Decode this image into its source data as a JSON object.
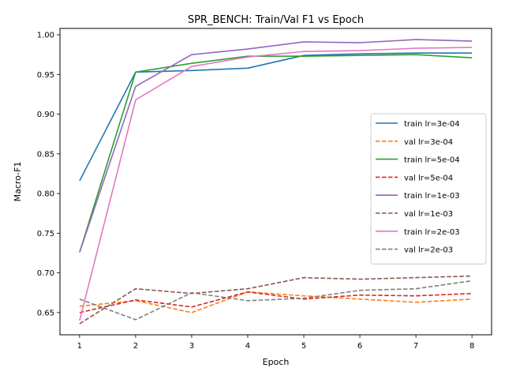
{
  "chart_data": {
    "type": "line",
    "title": "SPR_BENCH: Train/Val F1 vs Epoch",
    "xlabel": "Epoch",
    "ylabel": "Macro-F1",
    "x": [
      1,
      2,
      3,
      4,
      5,
      6,
      7,
      8
    ],
    "xlim": [
      0.65,
      8.35
    ],
    "ylim": [
      0.622,
      1.008
    ],
    "yticks": [
      "0.65",
      "0.70",
      "0.75",
      "0.80",
      "0.85",
      "0.90",
      "0.95",
      "1.00"
    ],
    "xticks": [
      "1",
      "2",
      "3",
      "4",
      "5",
      "6",
      "7",
      "8"
    ],
    "grid": false,
    "legend_position": "center-right",
    "series": [
      {
        "name": "train lr=3e-04",
        "color": "#1f77b4",
        "dash": "solid",
        "values": [
          0.816,
          0.953,
          0.955,
          0.958,
          0.974,
          0.976,
          0.977,
          0.977
        ]
      },
      {
        "name": "val lr=3e-04",
        "color": "#ff7f0e",
        "dash": "dashed",
        "values": [
          0.658,
          0.665,
          0.65,
          0.676,
          0.671,
          0.667,
          0.663,
          0.667
        ]
      },
      {
        "name": "train lr=5e-04",
        "color": "#2ca02c",
        "dash": "solid",
        "values": [
          0.726,
          0.953,
          0.964,
          0.973,
          0.973,
          0.974,
          0.975,
          0.971
        ]
      },
      {
        "name": "val lr=5e-04",
        "color": "#d62728",
        "dash": "dashed",
        "values": [
          0.65,
          0.666,
          0.657,
          0.676,
          0.667,
          0.672,
          0.671,
          0.674
        ]
      },
      {
        "name": "train lr=1e-03",
        "color": "#9467bd",
        "dash": "solid",
        "values": [
          0.726,
          0.935,
          0.975,
          0.982,
          0.991,
          0.99,
          0.994,
          0.992
        ]
      },
      {
        "name": "val lr=1e-03",
        "color": "#8c564b",
        "dash": "dashed",
        "values": [
          0.636,
          0.68,
          0.674,
          0.68,
          0.694,
          0.692,
          0.694,
          0.696
        ]
      },
      {
        "name": "train lr=2e-03",
        "color": "#e377c2",
        "dash": "solid",
        "values": [
          0.64,
          0.918,
          0.96,
          0.972,
          0.979,
          0.98,
          0.983,
          0.984
        ]
      },
      {
        "name": "val lr=2e-03",
        "color": "#7f7f7f",
        "dash": "dashed",
        "values": [
          0.667,
          0.641,
          0.675,
          0.665,
          0.668,
          0.678,
          0.68,
          0.69
        ]
      }
    ]
  }
}
